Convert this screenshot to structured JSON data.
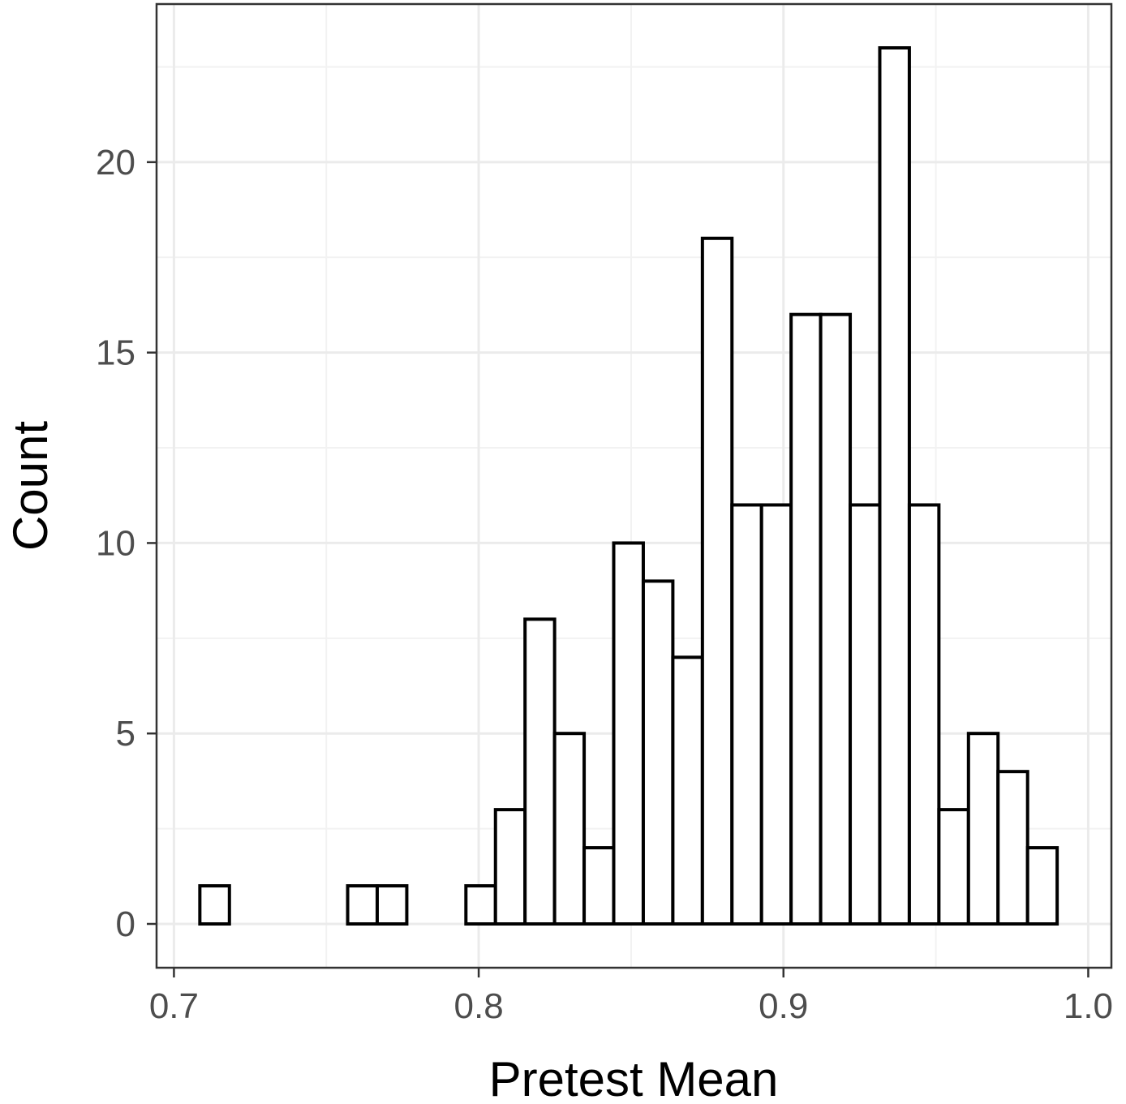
{
  "chart_data": {
    "type": "bar",
    "subtype": "histogram",
    "xlabel": "Pretest Mean",
    "ylabel": "Count",
    "x_ticks": [
      0.7,
      0.8,
      0.9,
      1.0
    ],
    "x_tick_labels": [
      "0.7",
      "0.8",
      "0.9",
      "1.0"
    ],
    "y_ticks": [
      0,
      5,
      10,
      15,
      20
    ],
    "y_tick_labels": [
      "0",
      "5",
      "10",
      "15",
      "20"
    ],
    "xlim": [
      0.6943,
      1.0076
    ],
    "ylim": [
      -1.15,
      24.15
    ],
    "bin_width": 0.0097,
    "bins": [
      {
        "x0": 0.7085,
        "x1": 0.7182,
        "count": 1
      },
      {
        "x0": 0.7182,
        "x1": 0.7279,
        "count": 0
      },
      {
        "x0": 0.7279,
        "x1": 0.7376,
        "count": 0
      },
      {
        "x0": 0.7376,
        "x1": 0.7473,
        "count": 0
      },
      {
        "x0": 0.7473,
        "x1": 0.757,
        "count": 0
      },
      {
        "x0": 0.757,
        "x1": 0.7667,
        "count": 1
      },
      {
        "x0": 0.7667,
        "x1": 0.7764,
        "count": 1
      },
      {
        "x0": 0.7764,
        "x1": 0.7861,
        "count": 0
      },
      {
        "x0": 0.7861,
        "x1": 0.7958,
        "count": 0
      },
      {
        "x0": 0.7958,
        "x1": 0.8055,
        "count": 1
      },
      {
        "x0": 0.8055,
        "x1": 0.8152,
        "count": 3
      },
      {
        "x0": 0.8152,
        "x1": 0.8249,
        "count": 8
      },
      {
        "x0": 0.8249,
        "x1": 0.8346,
        "count": 5
      },
      {
        "x0": 0.8346,
        "x1": 0.8443,
        "count": 2
      },
      {
        "x0": 0.8443,
        "x1": 0.854,
        "count": 10
      },
      {
        "x0": 0.854,
        "x1": 0.8637,
        "count": 9
      },
      {
        "x0": 0.8637,
        "x1": 0.8734,
        "count": 7
      },
      {
        "x0": 0.8734,
        "x1": 0.8831,
        "count": 18
      },
      {
        "x0": 0.8831,
        "x1": 0.8928,
        "count": 11
      },
      {
        "x0": 0.8928,
        "x1": 0.9025,
        "count": 11
      },
      {
        "x0": 0.9025,
        "x1": 0.9122,
        "count": 16
      },
      {
        "x0": 0.9122,
        "x1": 0.9219,
        "count": 16
      },
      {
        "x0": 0.9219,
        "x1": 0.9316,
        "count": 11
      },
      {
        "x0": 0.9316,
        "x1": 0.9413,
        "count": 23
      },
      {
        "x0": 0.9413,
        "x1": 0.951,
        "count": 11
      },
      {
        "x0": 0.951,
        "x1": 0.9607,
        "count": 3
      },
      {
        "x0": 0.9607,
        "x1": 0.9704,
        "count": 5
      },
      {
        "x0": 0.9704,
        "x1": 0.9801,
        "count": 4
      },
      {
        "x0": 0.9801,
        "x1": 0.9898,
        "count": 2
      }
    ],
    "grid": true,
    "legend": "none",
    "colors": {
      "bar_fill": "#ffffff",
      "bar_stroke": "#000000",
      "grid_major": "#ebebeb",
      "grid_minor": "#f2f2f2",
      "panel_border": "#333333",
      "tick_mark": "#333333"
    }
  }
}
